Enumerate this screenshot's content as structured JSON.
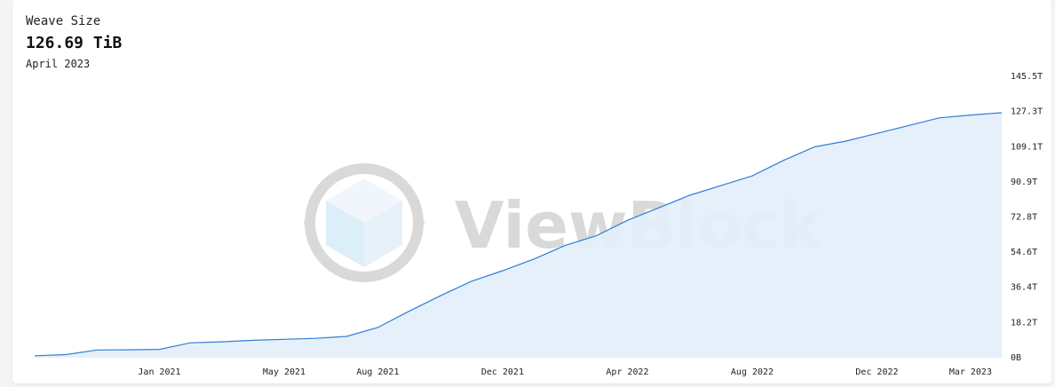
{
  "header": {
    "title": "Weave Size",
    "value": "126.69 TiB",
    "period": "April 2023"
  },
  "watermark": {
    "text": "ViewBlock"
  },
  "colors": {
    "line": "#2f7ed8",
    "area": "#e3eefb",
    "watermark": "#d9d9d9"
  },
  "chart_data": {
    "type": "area",
    "title": "Weave Size",
    "x": [
      "2020-09",
      "2020-10",
      "2020-11",
      "2020-12",
      "2021-01",
      "2021-02",
      "2021-03",
      "2021-04",
      "2021-05",
      "2021-06",
      "2021-07",
      "2021-08",
      "2021-09",
      "2021-10",
      "2021-11",
      "2021-12",
      "2022-01",
      "2022-02",
      "2022-03",
      "2022-04",
      "2022-05",
      "2022-06",
      "2022-07",
      "2022-08",
      "2022-09",
      "2022-10",
      "2022-11",
      "2022-12",
      "2023-01",
      "2023-02",
      "2023-03",
      "2023-04"
    ],
    "series": [
      {
        "values": [
          1.0,
          1.6,
          4.0,
          4.1,
          4.3,
          7.7,
          8.2,
          9.0,
          9.5,
          10.0,
          11.0,
          15.6,
          24.0,
          32.0,
          39.5,
          45.0,
          51.0,
          58.0,
          63.0,
          71.0,
          77.5,
          84.0,
          89.0,
          94.0,
          102.0,
          109.0,
          112.0,
          116.0,
          120.0,
          124.0,
          125.5,
          126.69
        ]
      }
    ],
    "x_ticks": [
      "Jan 2021",
      "May 2021",
      "Aug 2021",
      "Dec 2021",
      "Apr 2022",
      "Aug 2022",
      "Dec 2022",
      "Mar 2023"
    ],
    "x_tick_positions": [
      "2021-01",
      "2021-05",
      "2021-08",
      "2021-12",
      "2022-04",
      "2022-08",
      "2022-12",
      "2023-03"
    ],
    "y_ticks": [
      "0B",
      "18.2T",
      "36.4T",
      "54.6T",
      "72.8T",
      "90.9T",
      "109.1T",
      "127.3T",
      "145.5T"
    ],
    "y_tick_values": [
      0,
      18.2,
      36.4,
      54.6,
      72.8,
      90.9,
      109.1,
      127.3,
      145.5
    ],
    "ylim": [
      0,
      145.5
    ],
    "y_unit": "TiB",
    "y_axis_side": "right",
    "grid": false,
    "legend": "none"
  }
}
